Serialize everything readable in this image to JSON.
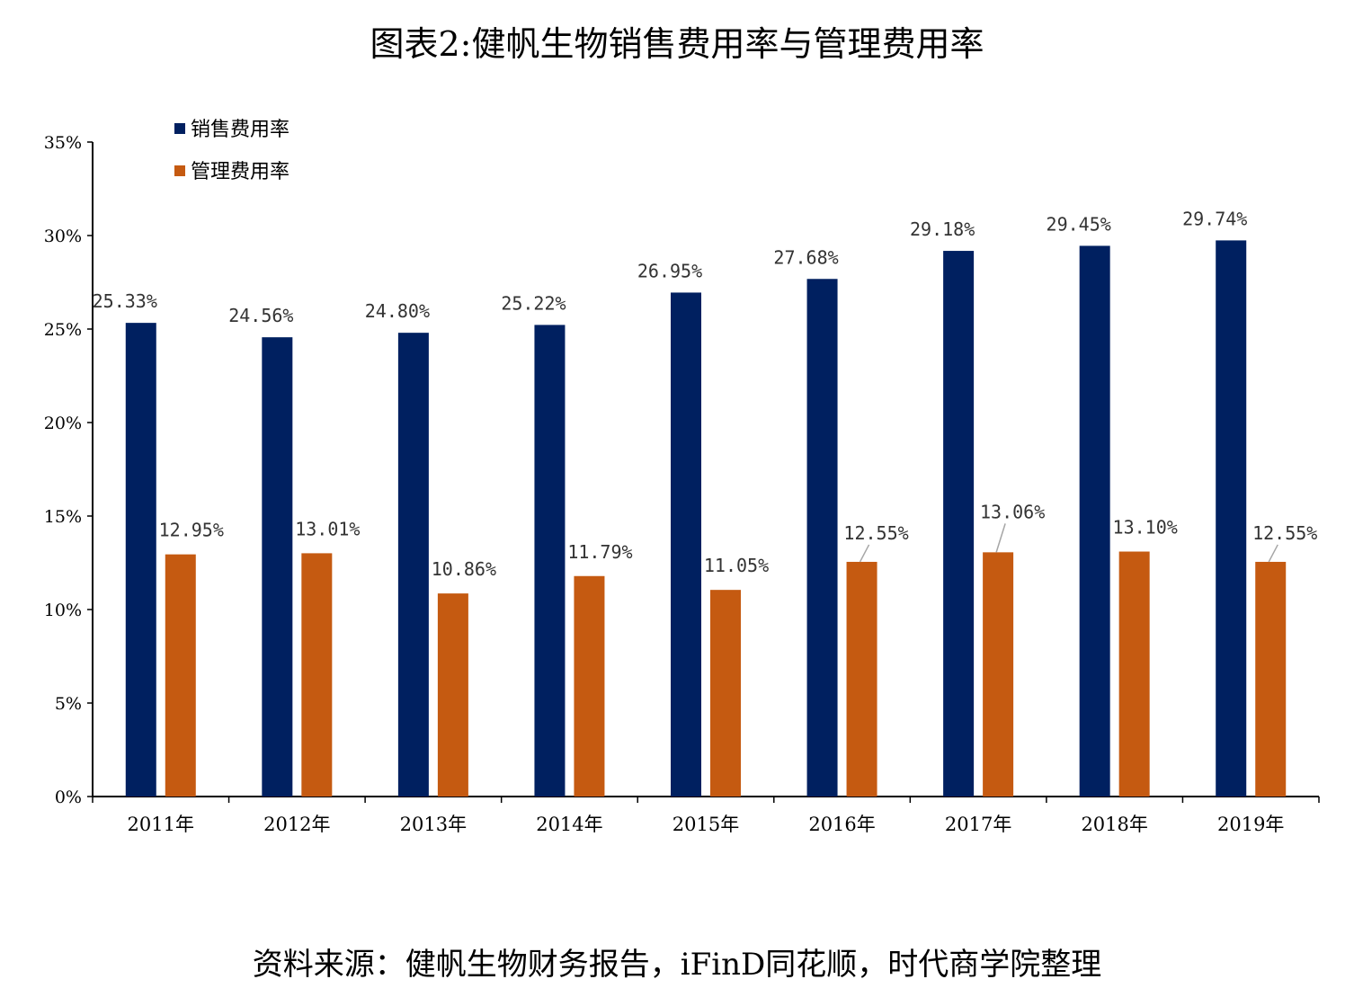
{
  "chart_data": {
    "type": "bar",
    "title": "图表2:健帆生物销售费用率与管理费用率",
    "source": "资料来源：健帆生物财务报告，iFinD同花顺，时代商学院整理",
    "categories": [
      "2011年",
      "2012年",
      "2013年",
      "2014年",
      "2015年",
      "2016年",
      "2017年",
      "2018年",
      "2019年"
    ],
    "series": [
      {
        "name": "销售费用率",
        "color": "#002060",
        "values": [
          25.33,
          24.56,
          24.8,
          25.22,
          26.95,
          27.68,
          29.18,
          29.45,
          29.74
        ],
        "labels": [
          "25.33%",
          "24.56%",
          "24.80%",
          "25.22%",
          "26.95%",
          "27.68%",
          "29.18%",
          "29.45%",
          "29.74%"
        ]
      },
      {
        "name": "管理费用率",
        "color": "#C55A11",
        "values": [
          12.95,
          13.01,
          10.86,
          11.79,
          11.05,
          12.55,
          13.06,
          13.1,
          12.55
        ],
        "labels": [
          "12.95%",
          "13.01%",
          "10.86%",
          "11.79%",
          "11.05%",
          "12.55%",
          "13.06%",
          "13.10%",
          "12.55%"
        ]
      }
    ],
    "ylim": [
      0,
      35
    ],
    "yticks": [
      0,
      5,
      10,
      15,
      20,
      25,
      30,
      35
    ],
    "ytick_labels": [
      "0%",
      "5%",
      "10%",
      "15%",
      "20%",
      "25%",
      "30%",
      "35%"
    ],
    "xlabel": "",
    "ylabel": "",
    "legend_position": "top-left",
    "grid": false
  }
}
